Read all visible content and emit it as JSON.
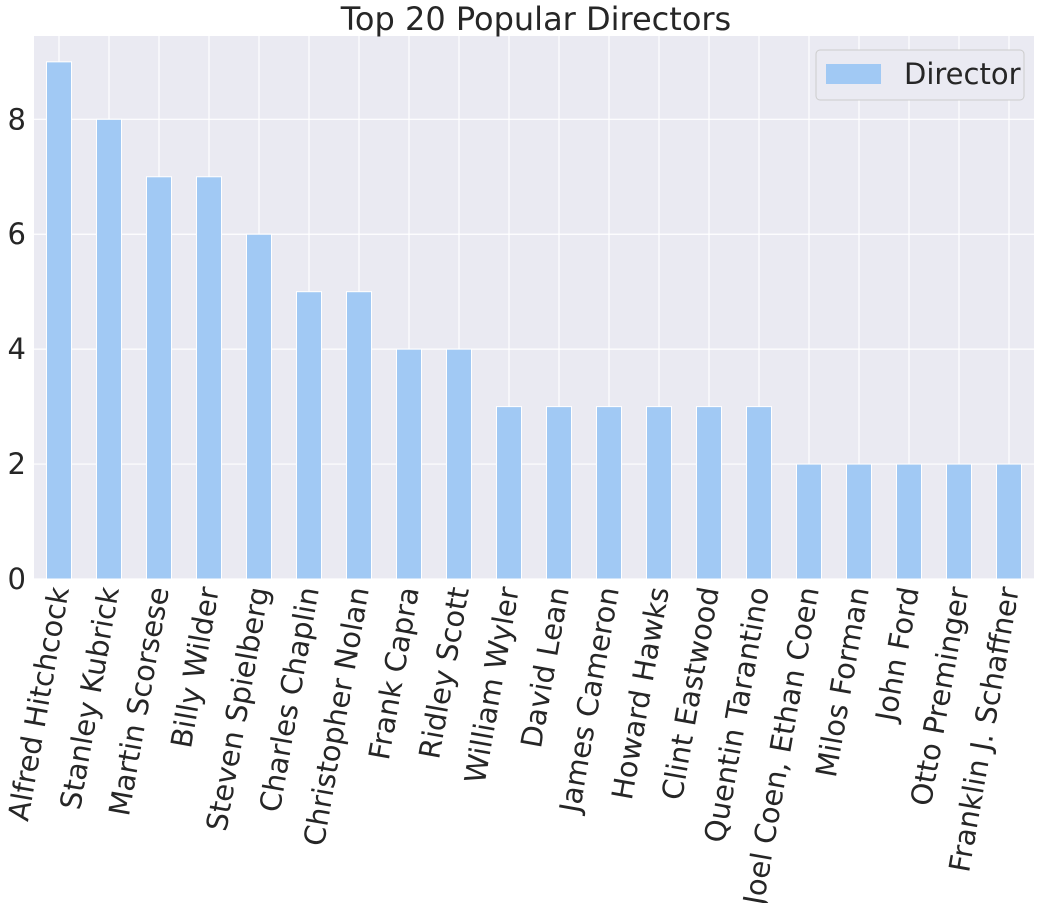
{
  "chart_data": {
    "type": "bar",
    "title": "Top 20 Popular Directors",
    "xlabel": "",
    "ylabel": "",
    "categories": [
      "Alfred Hitchcock",
      "Stanley Kubrick",
      "Martin Scorsese",
      "Billy Wilder",
      "Steven Spielberg",
      "Charles Chaplin",
      "Christopher Nolan",
      "Frank Capra",
      "Ridley Scott",
      "William Wyler",
      "David Lean",
      "James Cameron",
      "Howard Hawks",
      "Clint Eastwood",
      "Quentin Tarantino",
      "Joel Coen, Ethan Coen",
      "Milos Forman",
      "John Ford",
      "Otto Preminger",
      "Franklin J. Schaffner"
    ],
    "series": [
      {
        "name": "Director",
        "values": [
          9,
          8,
          7,
          7,
          6,
          5,
          5,
          4,
          4,
          3,
          3,
          3,
          3,
          3,
          3,
          2,
          2,
          2,
          2,
          2
        ]
      }
    ],
    "ylim": [
      0,
      9.45
    ],
    "yticks": [
      0,
      2,
      4,
      6,
      8
    ],
    "grid": true,
    "legend": "top-right",
    "colors": {
      "bar": "#a1c9f4",
      "plot_background": "#eaeaf2",
      "grid": "#ffffff",
      "text": "#262626"
    }
  }
}
